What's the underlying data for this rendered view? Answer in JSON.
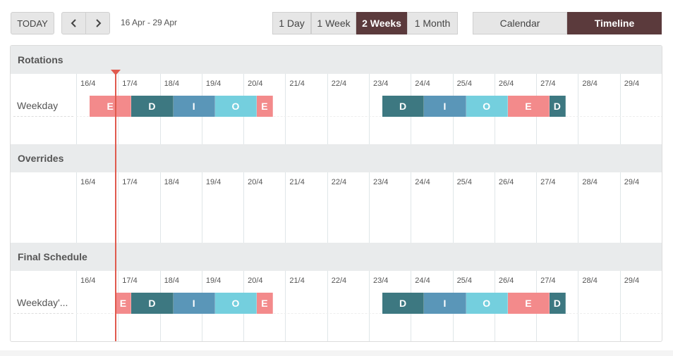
{
  "toolbar": {
    "today": "TODAY",
    "range": "16 Apr - 29 Apr",
    "views": [
      "1 Day",
      "1 Week",
      "2 Weeks",
      "1 Month"
    ],
    "selected_view": 2,
    "modes": [
      "Calendar",
      "Timeline"
    ],
    "selected_mode": 1
  },
  "days": [
    "16/4",
    "17/4",
    "18/4",
    "19/4",
    "20/4",
    "21/4",
    "22/4",
    "23/4",
    "24/4",
    "25/4",
    "26/4",
    "27/4",
    "28/4",
    "29/4"
  ],
  "now": 0.94,
  "colors": {
    "E": "#f38a8b",
    "D": "#3d7881",
    "I": "#5a96b8",
    "O": "#74cfde"
  },
  "sections": [
    {
      "title": "Rotations",
      "rows": [
        {
          "label": "Weekday",
          "shifts": [
            {
              "label": "E",
              "start": 0.32,
              "end": 1.32
            },
            {
              "label": "D",
              "start": 1.32,
              "end": 2.32
            },
            {
              "label": "I",
              "start": 2.32,
              "end": 3.32
            },
            {
              "label": "O",
              "start": 3.32,
              "end": 4.32
            },
            {
              "label": "E",
              "start": 4.32,
              "end": 4.7
            },
            {
              "label": "D",
              "start": 7.32,
              "end": 8.32
            },
            {
              "label": "I",
              "start": 8.32,
              "end": 9.32
            },
            {
              "label": "O",
              "start": 9.32,
              "end": 10.32
            },
            {
              "label": "E",
              "start": 10.32,
              "end": 11.32
            },
            {
              "label": "D",
              "start": 11.32,
              "end": 11.7
            }
          ]
        }
      ]
    },
    {
      "title": "Overrides",
      "rows": []
    },
    {
      "title": "Final Schedule",
      "rows": [
        {
          "label": "Weekday'...",
          "shifts": [
            {
              "label": "E",
              "start": 0.94,
              "end": 1.32
            },
            {
              "label": "D",
              "start": 1.32,
              "end": 2.32
            },
            {
              "label": "I",
              "start": 2.32,
              "end": 3.32
            },
            {
              "label": "O",
              "start": 3.32,
              "end": 4.32
            },
            {
              "label": "E",
              "start": 4.32,
              "end": 4.7
            },
            {
              "label": "D",
              "start": 7.32,
              "end": 8.32
            },
            {
              "label": "I",
              "start": 8.32,
              "end": 9.32
            },
            {
              "label": "O",
              "start": 9.32,
              "end": 10.32
            },
            {
              "label": "E",
              "start": 10.32,
              "end": 11.32
            },
            {
              "label": "D",
              "start": 11.32,
              "end": 11.7
            }
          ]
        }
      ]
    }
  ]
}
